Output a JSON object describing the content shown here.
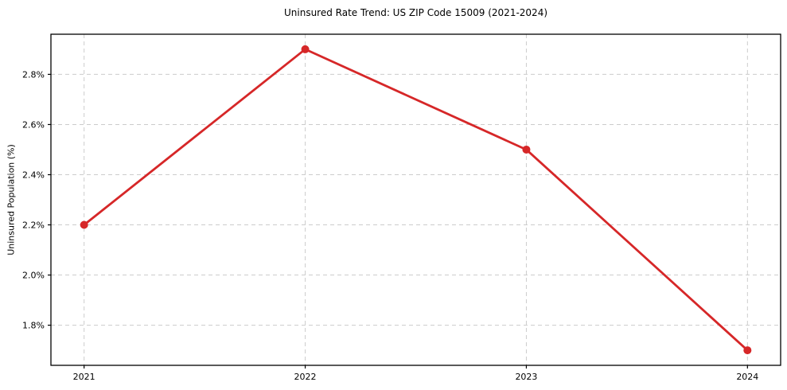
{
  "figure": {
    "title": "Uninsured Rate Trend: US ZIP Code 15009 (2021-2024)",
    "ylabel": "Uninsured Population (%)"
  },
  "chart_data": {
    "type": "line",
    "title": "Uninsured Rate Trend: US ZIP Code 15009 (2021-2024)",
    "xlabel": "",
    "ylabel": "Uninsured Population (%)",
    "x": [
      2021,
      2022,
      2023,
      2024
    ],
    "series": [
      {
        "name": "Uninsured Population (%)",
        "values": [
          2.2,
          2.9,
          2.5,
          1.7
        ]
      }
    ],
    "xtick_labels": [
      "2021",
      "2022",
      "2023",
      "2024"
    ],
    "ytick_values": [
      1.8,
      2.0,
      2.2,
      2.4,
      2.6,
      2.8
    ],
    "ytick_labels": [
      "1.8%",
      "2.0%",
      "2.2%",
      "2.4%",
      "2.6%",
      "2.8%"
    ],
    "xlim": [
      2020.85,
      2024.15
    ],
    "ylim": [
      1.64,
      2.96
    ],
    "grid": true,
    "grid_style": "dashed",
    "legend_position": "none",
    "line_color": "#d62728",
    "marker": "circle",
    "marker_radius": 5,
    "line_width": 2.8,
    "grid_color": "#cccccc",
    "spine_color": "#000000",
    "tick_label_color": "#000000"
  }
}
